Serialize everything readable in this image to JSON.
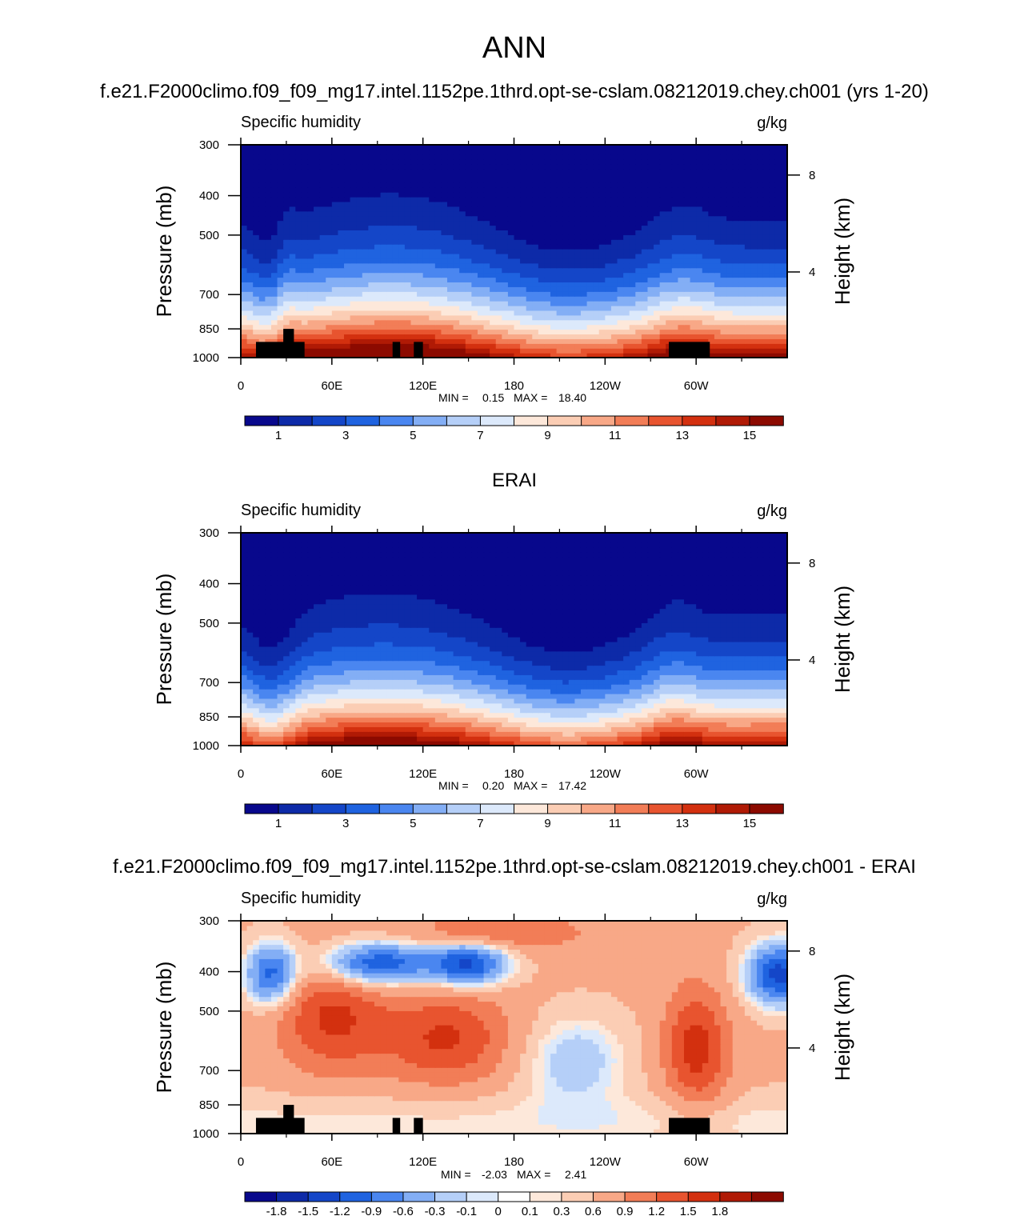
{
  "figure": {
    "title": "ANN"
  },
  "colors": {
    "abs_levels": [
      "#08088c",
      "#0d2aa8",
      "#1446c8",
      "#1f63e0",
      "#4a86f0",
      "#83aef5",
      "#b5cff8",
      "#dce9fb",
      "#fde8da",
      "#fbcdb4",
      "#f8a887",
      "#f27d57",
      "#e8542f",
      "#d3300f",
      "#b01a05",
      "#8c0a00"
    ],
    "diff_levels": [
      "#08088c",
      "#0d2aa8",
      "#1446c8",
      "#1f63e0",
      "#4a86f0",
      "#83aef5",
      "#b5cff8",
      "#dce9fb",
      "#ffffff",
      "#fde8da",
      "#fbcdb4",
      "#f8a887",
      "#f27d57",
      "#e8542f",
      "#d3300f",
      "#b01a05",
      "#8c0a00"
    ],
    "terrain": "#000000"
  },
  "chart_data": [
    {
      "type": "heatmap",
      "panel_title": "f.e21.F2000climo.f09_f09_mg17.intel.1152pe.1thrd.opt-se-cslam.08212019.chey.ch001 (yrs 1-20)",
      "variable": "Specific humidity",
      "units": "g/kg",
      "ylabel": "Pressure (mb)",
      "ylabel_right": "Height (km)",
      "yticks": [
        "300",
        "400",
        "500",
        "700",
        "850",
        "1000"
      ],
      "yticks_right": [
        "8",
        "4"
      ],
      "xticks": [
        "0",
        "60E",
        "120E",
        "180",
        "120W",
        "60W"
      ],
      "xlim": [
        0,
        360
      ],
      "ylim": [
        1000,
        300
      ],
      "min": "0.15",
      "max": "18.40",
      "minmax_text": {
        "min_label": "MIN =",
        "min": "0.15",
        "max_label": "MAX =",
        "max": "18.40"
      },
      "colorbar_labels": [
        "1",
        "3",
        "5",
        "7",
        "9",
        "11",
        "13",
        "15"
      ],
      "kind": "model"
    },
    {
      "type": "heatmap",
      "panel_title": "ERAI",
      "variable": "Specific humidity",
      "units": "g/kg",
      "ylabel": "Pressure (mb)",
      "ylabel_right": "Height (km)",
      "yticks": [
        "300",
        "400",
        "500",
        "700",
        "850",
        "1000"
      ],
      "yticks_right": [
        "8",
        "4"
      ],
      "xticks": [
        "0",
        "60E",
        "120E",
        "180",
        "120W",
        "60W"
      ],
      "xlim": [
        0,
        360
      ],
      "ylim": [
        1000,
        300
      ],
      "min": "0.20",
      "max": "17.42",
      "minmax_text": {
        "min_label": "MIN =",
        "min": "0.20",
        "max_label": "MAX =",
        "max": "17.42"
      },
      "colorbar_labels": [
        "1",
        "3",
        "5",
        "7",
        "9",
        "11",
        "13",
        "15"
      ],
      "kind": "obs"
    },
    {
      "type": "heatmap",
      "panel_title": "f.e21.F2000climo.f09_f09_mg17.intel.1152pe.1thrd.opt-se-cslam.08212019.chey.ch001 - ERAI",
      "variable": "Specific humidity",
      "units": "g/kg",
      "ylabel": "Pressure (mb)",
      "ylabel_right": "Height (km)",
      "yticks": [
        "300",
        "400",
        "500",
        "700",
        "850",
        "1000"
      ],
      "yticks_right": [
        "8",
        "4"
      ],
      "xticks": [
        "0",
        "60E",
        "120E",
        "180",
        "120W",
        "60W"
      ],
      "xlim": [
        0,
        360
      ],
      "ylim": [
        1000,
        300
      ],
      "min": "-2.03",
      "max": "2.41",
      "minmax_text": {
        "min_label": "MIN =",
        "min": "-2.03",
        "max_label": "MAX =",
        "max": "2.41"
      },
      "colorbar_labels": [
        "-1.8",
        "-1.5",
        "-1.2",
        "-0.9",
        "-0.6",
        "-0.3",
        "-0.1",
        "0",
        "0.1",
        "0.3",
        "0.6",
        "0.9",
        "1.2",
        "1.5",
        "1.8"
      ],
      "kind": "diff"
    }
  ]
}
